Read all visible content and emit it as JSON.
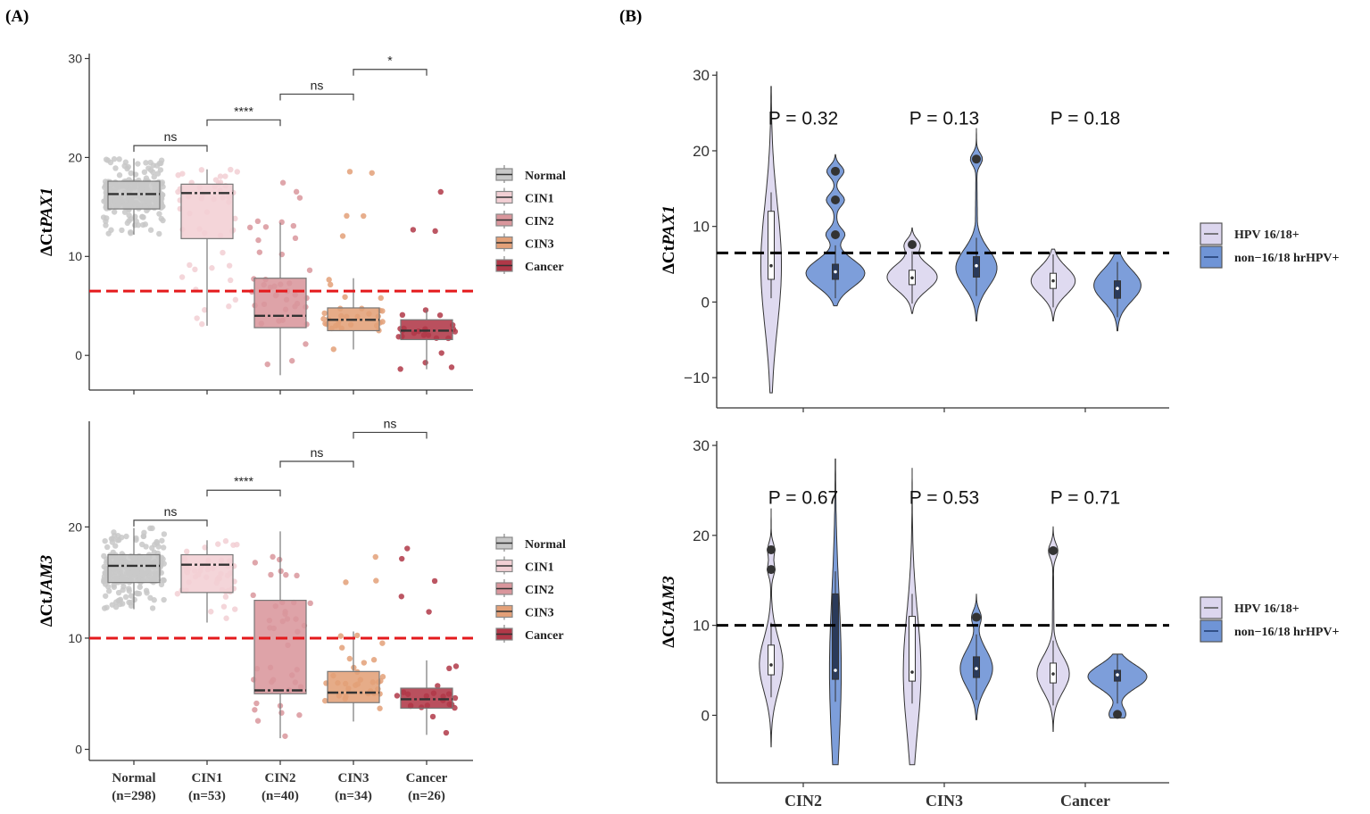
{
  "panel_labels": {
    "a": "(A)",
    "b": "(B)"
  },
  "colors": {
    "Normal": "#c8c8c8",
    "CIN1": "#f2cfd4",
    "CIN2": "#d9969c",
    "CIN3": "#e3a078",
    "Cancer": "#b03848",
    "hpv1618": "#dcd6ee",
    "nonhpv": "#6f94d6",
    "threshold_a": "#e41a1c",
    "threshold_b": "#000000"
  },
  "chart_data": [
    {
      "id": "A1",
      "type": "box",
      "ylabel_prefix": "ΔCt",
      "ylabel_gene": "PAX1",
      "ylim": [
        -3.5,
        30.5
      ],
      "yticks": [
        0,
        10,
        20,
        30
      ],
      "categories": [
        "Normal",
        "CIN1",
        "CIN2",
        "CIN3",
        "Cancer"
      ],
      "boxes": [
        {
          "group": "Normal",
          "q1": 14.8,
          "median": 16.3,
          "q3": 17.6,
          "low": 12.2,
          "high": 19.9
        },
        {
          "group": "CIN1",
          "q1": 11.8,
          "median": 16.4,
          "q3": 17.3,
          "low": 3.0,
          "high": 18.8
        },
        {
          "group": "CIN2",
          "q1": 2.8,
          "median": 4.0,
          "q3": 7.8,
          "low": -2.0,
          "high": 13.4
        },
        {
          "group": "CIN3",
          "q1": 2.5,
          "median": 3.6,
          "q3": 4.8,
          "low": 0.6,
          "high": 7.8
        },
        {
          "group": "Cancer",
          "q1": 1.6,
          "median": 2.5,
          "q3": 3.6,
          "low": -1.4,
          "high": 4.6
        }
      ],
      "threshold": 6.5,
      "comparisons": [
        {
          "from": 0,
          "to": 1,
          "label": "ns",
          "y": 21.2
        },
        {
          "from": 1,
          "to": 2,
          "label": "****",
          "y": 23.8
        },
        {
          "from": 2,
          "to": 3,
          "label": "ns",
          "y": 26.4
        },
        {
          "from": 3,
          "to": 4,
          "label": "*",
          "y": 28.9
        }
      ],
      "legend": [
        "Normal",
        "CIN1",
        "CIN2",
        "CIN3",
        "Cancer"
      ]
    },
    {
      "id": "A2",
      "type": "box",
      "ylabel_prefix": "ΔCt",
      "ylabel_gene": "JAM3",
      "ylim": [
        -1,
        29.5
      ],
      "yticks": [
        0,
        10,
        20
      ],
      "categories": [
        "Normal",
        "CIN1",
        "CIN2",
        "CIN3",
        "Cancer"
      ],
      "category_labels": [
        [
          "Normal",
          "(n=298)"
        ],
        [
          "CIN1",
          "(n=53)"
        ],
        [
          "CIN2",
          "(n=40)"
        ],
        [
          "CIN3",
          "(n=34)"
        ],
        [
          "Cancer",
          "(n=26)"
        ]
      ],
      "boxes": [
        {
          "group": "Normal",
          "q1": 15.0,
          "median": 16.5,
          "q3": 17.5,
          "low": 12.6,
          "high": 19.9
        },
        {
          "group": "CIN1",
          "q1": 14.1,
          "median": 16.6,
          "q3": 17.5,
          "low": 11.4,
          "high": 18.8
        },
        {
          "group": "CIN2",
          "q1": 5.0,
          "median": 5.3,
          "q3": 13.4,
          "low": 1.0,
          "high": 19.6
        },
        {
          "group": "CIN3",
          "q1": 4.2,
          "median": 5.1,
          "q3": 7.0,
          "low": 2.5,
          "high": 10.6
        },
        {
          "group": "Cancer",
          "q1": 3.7,
          "median": 4.5,
          "q3": 5.5,
          "low": 1.3,
          "high": 8.0
        }
      ],
      "threshold": 10,
      "comparisons": [
        {
          "from": 0,
          "to": 1,
          "label": "ns",
          "y": 20.6
        },
        {
          "from": 1,
          "to": 2,
          "label": "****",
          "y": 23.3
        },
        {
          "from": 2,
          "to": 3,
          "label": "ns",
          "y": 25.9
        },
        {
          "from": 3,
          "to": 4,
          "label": "ns",
          "y": 28.5
        }
      ],
      "legend": [
        "Normal",
        "CIN1",
        "CIN2",
        "CIN3",
        "Cancer"
      ]
    },
    {
      "id": "B1",
      "type": "violin",
      "ylabel_prefix": "ΔCt",
      "ylabel_gene": "PAX1",
      "ylim": [
        -14,
        30.5
      ],
      "yticks": [
        -10,
        0,
        10,
        20,
        30
      ],
      "categories": [
        "CIN2",
        "CIN3",
        "Cancer"
      ],
      "threshold": 6.5,
      "pvalues": [
        "P = 0.32",
        "P = 0.13",
        "P = 0.18"
      ],
      "pvalue_y": 23.5,
      "violins": [
        {
          "category": "CIN2",
          "series": "hpv1618",
          "min": -12,
          "max": 28.5,
          "median": 4.8,
          "q1": 3.0,
          "q3": 12.0,
          "width": 0.35,
          "mode": 4.8,
          "outliers": []
        },
        {
          "category": "CIN2",
          "series": "nonhpv",
          "min": -0.5,
          "max": 19.5,
          "median": 4.0,
          "q1": 3.0,
          "q3": 5.0,
          "width": 1.0,
          "mode": 3.8,
          "outliers": [
            17.3,
            13.5,
            8.9
          ]
        },
        {
          "category": "CIN3",
          "series": "hpv1618",
          "min": -1.5,
          "max": 9.8,
          "median": 3.2,
          "q1": 2.3,
          "q3": 4.2,
          "width": 0.85,
          "mode": 3.3,
          "outliers": [
            7.6
          ]
        },
        {
          "category": "CIN3",
          "series": "nonhpv",
          "min": -2.5,
          "max": 23.0,
          "median": 4.8,
          "q1": 3.3,
          "q3": 6.0,
          "width": 0.7,
          "mode": 4.5,
          "outliers": [
            18.9
          ]
        },
        {
          "category": "Cancer",
          "series": "hpv1618",
          "min": -2.5,
          "max": 7.0,
          "median": 2.8,
          "q1": 1.8,
          "q3": 3.8,
          "width": 0.75,
          "mode": 2.8,
          "outliers": []
        },
        {
          "category": "Cancer",
          "series": "nonhpv",
          "min": -3.8,
          "max": 6.5,
          "median": 1.8,
          "q1": 0.5,
          "q3": 2.8,
          "width": 0.8,
          "mode": 2.2,
          "outliers": []
        }
      ],
      "legend": [
        {
          "series": "hpv1618",
          "label": "HPV 16/18+"
        },
        {
          "series": "nonhpv",
          "label": "non−16/18 hrHPV+"
        }
      ]
    },
    {
      "id": "B2",
      "type": "violin",
      "ylabel_prefix": "ΔCt",
      "ylabel_gene": "JAM3",
      "ylim": [
        -7.5,
        30.5
      ],
      "yticks": [
        0,
        10,
        20,
        30
      ],
      "categories": [
        "CIN2",
        "CIN3",
        "Cancer"
      ],
      "threshold": 10,
      "pvalues": [
        "P = 0.67",
        "P = 0.53",
        "P = 0.71"
      ],
      "pvalue_y": 23.5,
      "violins": [
        {
          "category": "CIN2",
          "series": "hpv1618",
          "min": -3.5,
          "max": 23.0,
          "median": 5.6,
          "q1": 4.5,
          "q3": 7.8,
          "width": 0.4,
          "mode": 5.6,
          "outliers": [
            18.4,
            16.2
          ]
        },
        {
          "category": "CIN2",
          "series": "nonhpv",
          "min": -5.5,
          "max": 28.5,
          "median": 5.0,
          "q1": 4.0,
          "q3": 13.5,
          "width": 0.2,
          "mode": 5.0,
          "outliers": []
        },
        {
          "category": "CIN3",
          "series": "hpv1618",
          "min": -5.5,
          "max": 27.5,
          "median": 4.8,
          "q1": 3.8,
          "q3": 11.0,
          "width": 0.3,
          "mode": 4.8,
          "outliers": []
        },
        {
          "category": "CIN3",
          "series": "nonhpv",
          "min": -0.5,
          "max": 13.5,
          "median": 5.2,
          "q1": 4.2,
          "q3": 6.5,
          "width": 0.55,
          "mode": 5.2,
          "outliers": [
            10.9
          ]
        },
        {
          "category": "Cancer",
          "series": "hpv1618",
          "min": -1.8,
          "max": 21.0,
          "median": 4.6,
          "q1": 3.6,
          "q3": 5.8,
          "width": 0.55,
          "mode": 4.6,
          "outliers": [
            18.3
          ]
        },
        {
          "category": "Cancer",
          "series": "nonhpv",
          "min": -0.3,
          "max": 6.8,
          "median": 4.5,
          "q1": 3.8,
          "q3": 5.0,
          "width": 1.0,
          "mode": 4.3,
          "outliers": [
            0.1
          ]
        }
      ],
      "legend": [
        {
          "series": "hpv1618",
          "label": "HPV 16/18+"
        },
        {
          "series": "nonhpv",
          "label": "non−16/18 hrHPV+"
        }
      ]
    }
  ]
}
